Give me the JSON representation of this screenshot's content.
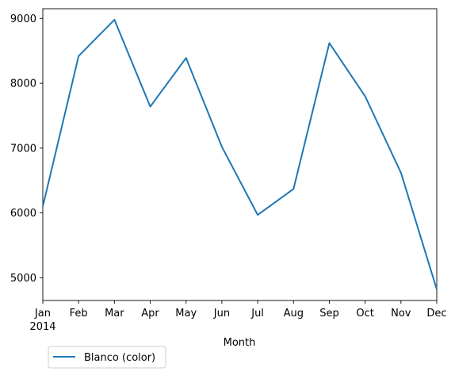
{
  "chart_data": {
    "type": "line",
    "title": "",
    "xlabel": "Month",
    "ylabel": "",
    "year_label": "2014",
    "x": [
      "Jan",
      "Feb",
      "Mar",
      "Apr",
      "May",
      "Jun",
      "Jul",
      "Aug",
      "Sep",
      "Oct",
      "Nov",
      "Dec"
    ],
    "ylim": [
      4650,
      9150
    ],
    "yticks": [
      5000,
      6000,
      7000,
      8000,
      9000
    ],
    "grid": false,
    "legend_position": "bottom-left, below axes",
    "series": [
      {
        "name": "Blanco (color)",
        "color": "#1f77b4",
        "values": [
          6100,
          8420,
          8980,
          7640,
          8390,
          7020,
          5970,
          6370,
          8620,
          7800,
          6620,
          4820
        ]
      }
    ]
  }
}
